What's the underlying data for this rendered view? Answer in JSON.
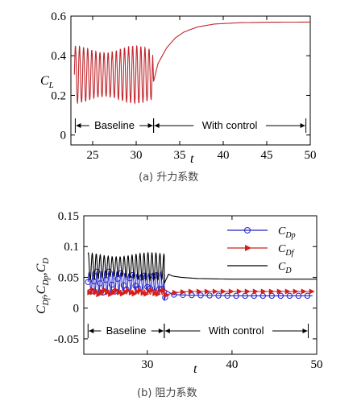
{
  "chart_data": [
    {
      "type": "line",
      "caption": "(a) 升力系数",
      "xlabel": "t",
      "ylabel": "CL",
      "xlim": [
        22.5,
        50
      ],
      "ylim": [
        -0.05,
        0.6
      ],
      "xticks": [
        25,
        30,
        35,
        40,
        45,
        50
      ],
      "yticks": [
        0,
        0.2,
        0.4,
        0.6
      ],
      "grid": false,
      "annotations": [
        {
          "text": "Baseline",
          "x_start": 23,
          "x_end": 32
        },
        {
          "text": "With control",
          "x_start": 32,
          "x_end": 49.5
        }
      ],
      "series": [
        {
          "color": "#c0272d",
          "segments": [
            {
              "kind": "oscillation",
              "x_start": 22.9,
              "x_end": 31.9,
              "period": 0.47,
              "min": 0.16,
              "max": 0.45
            },
            {
              "kind": "rise",
              "x": [
                32.0,
                32.5,
                33.5,
                34.5,
                35.5,
                37.0,
                39.0,
                42.0,
                45.0,
                50.0
              ],
              "y": [
                0.27,
                0.36,
                0.44,
                0.49,
                0.52,
                0.545,
                0.56,
                0.567,
                0.569,
                0.57
              ]
            }
          ]
        }
      ]
    },
    {
      "type": "line",
      "caption": "(b) 阻力系数",
      "xlabel": "t",
      "ylabel": "CDf,CDp,CD",
      "xlim": [
        22.5,
        50
      ],
      "ylim": [
        -0.075,
        0.15
      ],
      "xticks": [
        30,
        40,
        50
      ],
      "yticks": [
        -0.05,
        0,
        0.05,
        0.1,
        0.15
      ],
      "grid": false,
      "legend_position": "top-right",
      "annotations": [
        {
          "text": "Baseline",
          "x_start": 23,
          "x_end": 32
        },
        {
          "text": "With control",
          "x_start": 32,
          "x_end": 49
        }
      ],
      "series": [
        {
          "name": "CDp",
          "color": "#2323c8",
          "marker": "circle",
          "baseline": {
            "min": 0.025,
            "max": 0.06,
            "period": 0.47
          },
          "control": {
            "x": [
              32,
              32.3,
              33,
              35,
              40,
              45,
              49.5
            ],
            "y": [
              0.012,
              0.028,
              0.022,
              0.021,
              0.02,
              0.02,
              0.02
            ]
          }
        },
        {
          "name": "CDf",
          "color": "#d21e1e",
          "marker": "triangle-right",
          "baseline": {
            "min": 0.022,
            "max": 0.03,
            "period": 0.47
          },
          "control": {
            "x": [
              32,
              33,
              35,
              40,
              45,
              49.5
            ],
            "y": [
              0.02,
              0.025,
              0.027,
              0.027,
              0.027,
              0.027
            ]
          }
        },
        {
          "name": "CD",
          "color": "#000000",
          "marker": "none",
          "baseline": {
            "min": 0.045,
            "max": 0.09,
            "period": 0.47
          },
          "control": {
            "x": [
              32,
              32.5,
              33,
              34,
              36,
              40,
              45,
              50
            ],
            "y": [
              0.04,
              0.055,
              0.052,
              0.05,
              0.048,
              0.047,
              0.047,
              0.047
            ]
          }
        }
      ]
    }
  ]
}
